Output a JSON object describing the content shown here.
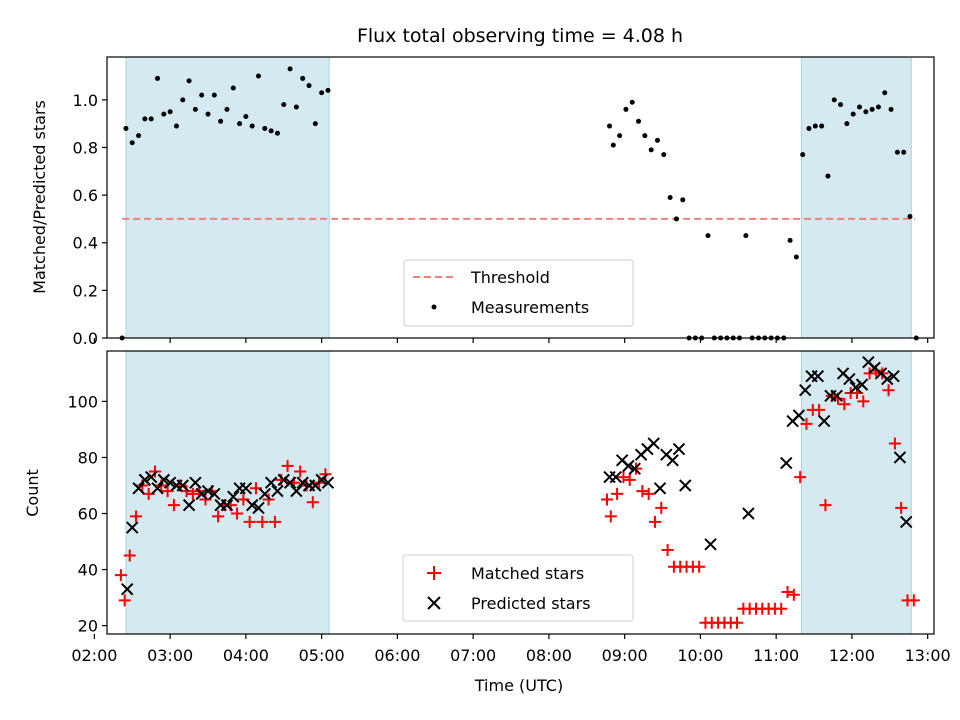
{
  "chart_data": [
    {
      "type": "scatter",
      "title": "Flux total observing time = 4.08 h",
      "ylabel": "Matched/Predicted stars",
      "xlabel": "",
      "xlim": [
        "02:10",
        "13:05"
      ],
      "ylim": [
        0,
        1.18
      ],
      "yticks": [
        "0.0",
        "0.2",
        "0.4",
        "0.6",
        "0.8",
        "1.0"
      ],
      "shaded_intervals": [
        [
          "02:25",
          "05:06"
        ],
        [
          "11:20",
          "12:47"
        ]
      ],
      "shade_color": "#d4e9f0",
      "threshold": {
        "name": "Threshold",
        "value": 0.5,
        "x_range": [
          "02:22",
          "12:50"
        ],
        "color": "#f08080",
        "style": "dashed"
      },
      "series": [
        {
          "name": "Measurements",
          "color": "#000000",
          "marker": "dot",
          "points": [
            [
              "02:22",
              0.0
            ],
            [
              "02:25",
              0.88
            ],
            [
              "02:30",
              0.82
            ],
            [
              "02:35",
              0.85
            ],
            [
              "02:40",
              0.92
            ],
            [
              "02:45",
              0.92
            ],
            [
              "02:50",
              1.09
            ],
            [
              "02:55",
              0.94
            ],
            [
              "03:00",
              0.95
            ],
            [
              "03:05",
              0.89
            ],
            [
              "03:10",
              1.0
            ],
            [
              "03:15",
              1.08
            ],
            [
              "03:20",
              0.96
            ],
            [
              "03:25",
              1.02
            ],
            [
              "03:30",
              0.94
            ],
            [
              "03:35",
              1.02
            ],
            [
              "03:40",
              0.91
            ],
            [
              "03:45",
              0.96
            ],
            [
              "03:50",
              1.05
            ],
            [
              "03:55",
              0.9
            ],
            [
              "04:00",
              0.93
            ],
            [
              "04:05",
              0.89
            ],
            [
              "04:10",
              1.1
            ],
            [
              "04:15",
              0.88
            ],
            [
              "04:20",
              0.87
            ],
            [
              "04:25",
              0.86
            ],
            [
              "04:30",
              0.98
            ],
            [
              "04:35",
              1.13
            ],
            [
              "04:40",
              0.97
            ],
            [
              "04:45",
              1.09
            ],
            [
              "04:50",
              1.06
            ],
            [
              "04:55",
              0.9
            ],
            [
              "05:00",
              1.03
            ],
            [
              "05:05",
              1.04
            ],
            [
              "08:48",
              0.89
            ],
            [
              "08:51",
              0.81
            ],
            [
              "08:56",
              0.85
            ],
            [
              "09:01",
              0.96
            ],
            [
              "09:06",
              0.99
            ],
            [
              "09:11",
              0.91
            ],
            [
              "09:16",
              0.85
            ],
            [
              "09:21",
              0.79
            ],
            [
              "09:26",
              0.83
            ],
            [
              "09:31",
              0.77
            ],
            [
              "09:36",
              0.59
            ],
            [
              "09:41",
              0.5
            ],
            [
              "09:46",
              0.58
            ],
            [
              "09:51",
              0.0
            ],
            [
              "09:56",
              0.0
            ],
            [
              "10:01",
              0.0
            ],
            [
              "10:06",
              0.43
            ],
            [
              "10:11",
              0.0
            ],
            [
              "10:16",
              0.0
            ],
            [
              "10:21",
              0.0
            ],
            [
              "10:26",
              0.0
            ],
            [
              "10:31",
              0.0
            ],
            [
              "10:36",
              0.43
            ],
            [
              "10:41",
              0.0
            ],
            [
              "10:46",
              0.0
            ],
            [
              "10:51",
              0.0
            ],
            [
              "10:56",
              0.0
            ],
            [
              "11:01",
              0.0
            ],
            [
              "11:06",
              0.0
            ],
            [
              "11:11",
              0.41
            ],
            [
              "11:16",
              0.34
            ],
            [
              "11:21",
              0.77
            ],
            [
              "11:26",
              0.88
            ],
            [
              "11:31",
              0.89
            ],
            [
              "11:36",
              0.89
            ],
            [
              "11:41",
              0.68
            ],
            [
              "11:46",
              1.0
            ],
            [
              "11:51",
              0.98
            ],
            [
              "11:56",
              0.9
            ],
            [
              "12:01",
              0.94
            ],
            [
              "12:06",
              0.97
            ],
            [
              "12:11",
              0.95
            ],
            [
              "12:16",
              0.96
            ],
            [
              "12:21",
              0.97
            ],
            [
              "12:26",
              1.03
            ],
            [
              "12:31",
              0.96
            ],
            [
              "12:36",
              0.78
            ],
            [
              "12:41",
              0.78
            ],
            [
              "12:46",
              0.51
            ],
            [
              "12:51",
              0.0
            ]
          ]
        }
      ],
      "legend": {
        "placement": "lower center",
        "entries": [
          "Threshold",
          "Measurements"
        ]
      },
      "grid": false
    },
    {
      "type": "scatter",
      "title": "",
      "ylabel": "Count",
      "xlabel": "Time (UTC)",
      "xlim": [
        "02:10",
        "13:05"
      ],
      "ylim": [
        17,
        118
      ],
      "yticks": [
        "20",
        "40",
        "60",
        "80",
        "100"
      ],
      "xticks": [
        "02:00",
        "03:00",
        "04:00",
        "05:00",
        "06:00",
        "07:00",
        "08:00",
        "09:00",
        "10:00",
        "11:00",
        "12:00",
        "13:00"
      ],
      "shaded_intervals": [
        [
          "02:25",
          "05:06"
        ],
        [
          "11:20",
          "12:47"
        ]
      ],
      "shade_color": "#d4e9f0",
      "series": [
        {
          "name": "Matched stars",
          "color": "#ff0000",
          "marker": "plus",
          "points": [
            [
              "02:21",
              38
            ],
            [
              "02:24",
              29
            ],
            [
              "02:28",
              45
            ],
            [
              "02:33",
              59
            ],
            [
              "02:38",
              70
            ],
            [
              "02:43",
              67
            ],
            [
              "02:48",
              75
            ],
            [
              "02:53",
              70
            ],
            [
              "02:58",
              68
            ],
            [
              "03:03",
              63
            ],
            [
              "03:08",
              70
            ],
            [
              "03:13",
              68
            ],
            [
              "03:18",
              67
            ],
            [
              "03:23",
              68
            ],
            [
              "03:28",
              65
            ],
            [
              "03:33",
              68
            ],
            [
              "03:38",
              59
            ],
            [
              "03:43",
              63
            ],
            [
              "03:48",
              63
            ],
            [
              "03:53",
              60
            ],
            [
              "03:58",
              65
            ],
            [
              "04:03",
              57
            ],
            [
              "04:08",
              69
            ],
            [
              "04:13",
              57
            ],
            [
              "04:18",
              65
            ],
            [
              "04:23",
              57
            ],
            [
              "04:28",
              72
            ],
            [
              "04:33",
              77
            ],
            [
              "04:38",
              71
            ],
            [
              "04:43",
              75
            ],
            [
              "04:48",
              70
            ],
            [
              "04:53",
              64
            ],
            [
              "04:58",
              71
            ],
            [
              "05:03",
              74
            ],
            [
              "08:46",
              65
            ],
            [
              "08:49",
              59
            ],
            [
              "08:54",
              67
            ],
            [
              "08:59",
              73
            ],
            [
              "09:04",
              72
            ],
            [
              "09:09",
              76
            ],
            [
              "09:14",
              68
            ],
            [
              "09:19",
              67
            ],
            [
              "09:24",
              57
            ],
            [
              "09:29",
              62
            ],
            [
              "09:34",
              47
            ],
            [
              "09:39",
              41
            ],
            [
              "09:44",
              41
            ],
            [
              "09:49",
              41
            ],
            [
              "09:54",
              41
            ],
            [
              "09:59",
              41
            ],
            [
              "10:04",
              21
            ],
            [
              "10:09",
              21
            ],
            [
              "10:14",
              21
            ],
            [
              "10:19",
              21
            ],
            [
              "10:24",
              21
            ],
            [
              "10:29",
              21
            ],
            [
              "10:34",
              26
            ],
            [
              "10:39",
              26
            ],
            [
              "10:44",
              26
            ],
            [
              "10:49",
              26
            ],
            [
              "10:54",
              26
            ],
            [
              "10:59",
              26
            ],
            [
              "11:04",
              26
            ],
            [
              "11:09",
              32
            ],
            [
              "11:14",
              31
            ],
            [
              "11:19",
              73
            ],
            [
              "11:24",
              92
            ],
            [
              "11:29",
              97
            ],
            [
              "11:34",
              97
            ],
            [
              "11:39",
              63
            ],
            [
              "11:44",
              102
            ],
            [
              "11:49",
              101
            ],
            [
              "11:54",
              99
            ],
            [
              "11:59",
              103
            ],
            [
              "12:04",
              103
            ],
            [
              "12:09",
              100
            ],
            [
              "12:14",
              110
            ],
            [
              "12:19",
              111
            ],
            [
              "12:24",
              110
            ],
            [
              "12:29",
              104
            ],
            [
              "12:34",
              85
            ],
            [
              "12:39",
              62
            ],
            [
              "12:44",
              29
            ],
            [
              "12:49",
              29
            ]
          ]
        },
        {
          "name": "Predicted stars",
          "color": "#000000",
          "marker": "x",
          "points": [
            [
              "02:26",
              33
            ],
            [
              "02:30",
              55
            ],
            [
              "02:35",
              69
            ],
            [
              "02:40",
              72
            ],
            [
              "02:45",
              73
            ],
            [
              "02:50",
              69
            ],
            [
              "02:55",
              72
            ],
            [
              "03:00",
              71
            ],
            [
              "03:05",
              70
            ],
            [
              "03:10",
              70
            ],
            [
              "03:15",
              63
            ],
            [
              "03:20",
              71
            ],
            [
              "03:25",
              67
            ],
            [
              "03:30",
              68
            ],
            [
              "03:35",
              67
            ],
            [
              "03:40",
              63
            ],
            [
              "03:45",
              63
            ],
            [
              "03:50",
              66
            ],
            [
              "03:55",
              69
            ],
            [
              "04:00",
              69
            ],
            [
              "04:05",
              63
            ],
            [
              "04:10",
              62
            ],
            [
              "04:15",
              67
            ],
            [
              "04:20",
              71
            ],
            [
              "04:25",
              68
            ],
            [
              "04:30",
              72
            ],
            [
              "04:35",
              71
            ],
            [
              "04:40",
              68
            ],
            [
              "04:45",
              71
            ],
            [
              "04:50",
              70
            ],
            [
              "04:55",
              70
            ],
            [
              "05:00",
              72
            ],
            [
              "05:05",
              71
            ],
            [
              "08:48",
              73
            ],
            [
              "08:53",
              73
            ],
            [
              "08:58",
              79
            ],
            [
              "09:03",
              77
            ],
            [
              "09:08",
              76
            ],
            [
              "09:13",
              81
            ],
            [
              "09:18",
              83
            ],
            [
              "09:23",
              85
            ],
            [
              "09:28",
              69
            ],
            [
              "09:33",
              81
            ],
            [
              "09:38",
              79
            ],
            [
              "09:43",
              83
            ],
            [
              "09:48",
              70
            ],
            [
              "10:08",
              49
            ],
            [
              "10:38",
              60
            ],
            [
              "11:08",
              78
            ],
            [
              "11:13",
              93
            ],
            [
              "11:18",
              95
            ],
            [
              "11:23",
              104
            ],
            [
              "11:28",
              109
            ],
            [
              "11:33",
              109
            ],
            [
              "11:38",
              93
            ],
            [
              "11:43",
              102
            ],
            [
              "11:48",
              102
            ],
            [
              "11:53",
              110
            ],
            [
              "11:58",
              108
            ],
            [
              "12:03",
              105
            ],
            [
              "12:08",
              106
            ],
            [
              "12:13",
              114
            ],
            [
              "12:18",
              112
            ],
            [
              "12:23",
              110
            ],
            [
              "12:28",
              108
            ],
            [
              "12:33",
              109
            ],
            [
              "12:38",
              80
            ],
            [
              "12:43",
              57
            ]
          ]
        }
      ],
      "legend": {
        "placement": "lower center",
        "entries": [
          "Matched stars",
          "Predicted stars"
        ]
      },
      "grid": false
    }
  ]
}
